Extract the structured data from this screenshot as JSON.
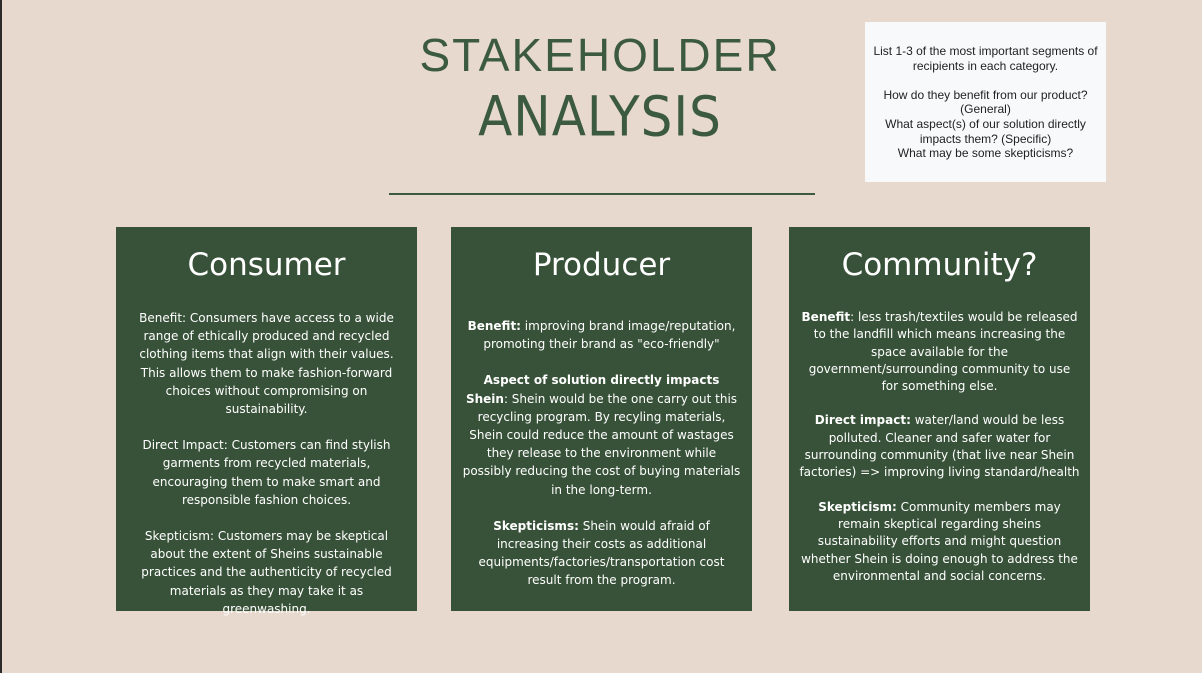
{
  "title": {
    "line1": "STAKEHOLDER",
    "line2": "ANALYSIS"
  },
  "note": {
    "line1": "List 1-3 of the most important segments of recipients in each category.",
    "line2": "How do they benefit from our product? (General)",
    "line3": "What aspect(s) of our solution directly impacts them? (Specific)",
    "line4": "What may be some skepticisms?"
  },
  "cards": {
    "consumer": {
      "heading": "Consumer",
      "benefit": "Benefit: Consumers have access to a wide range of ethically produced and recycled clothing items that align with their values. This allows them to make fashion-forward choices without compromising on sustainability.",
      "impact": "Direct Impact: Customers can find stylish garments from recycled materials, encouraging them to make smart and responsible fashion choices.",
      "skepticism": "Skepticism: Customers may be skeptical about the extent of Sheins sustainable practices and the authenticity of recycled materials as they may take it as greenwashing."
    },
    "producer": {
      "heading": "Producer",
      "benefit_label": "Benefit:",
      "benefit_text": " improving brand image/reputation, promoting their brand as \"eco-friendly\"",
      "impact_label": "Aspect of solution directly impacts Shein",
      "impact_text": ": Shein would be the one carry out this recycling program. By recyling materials, Shein could reduce the amount of wastages they release to the environment while possibly reducing the cost of buying materials in the long-term.",
      "skepticism_label": "Skepticisms:",
      "skepticism_text": " Shein would afraid of increasing their costs as additional equipments/factories/transportation cost result from the program."
    },
    "community": {
      "heading": "Community?",
      "benefit_label": "Benefit",
      "benefit_text": ": less trash/textiles would be released to the landfill which means increasing the space available for the government/surrounding community to use for something else.",
      "impact_label": "Direct impact:",
      "impact_text": " water/land would be less polluted. Cleaner and safer water for surrounding community (that live near Shein factories) => improving living standard/health",
      "skepticism_label": "Skepticism:",
      "skepticism_text": " Community members may remain skeptical regarding sheins sustainability efforts and might question whether Shein is doing enough to address the environmental and social concerns."
    }
  }
}
